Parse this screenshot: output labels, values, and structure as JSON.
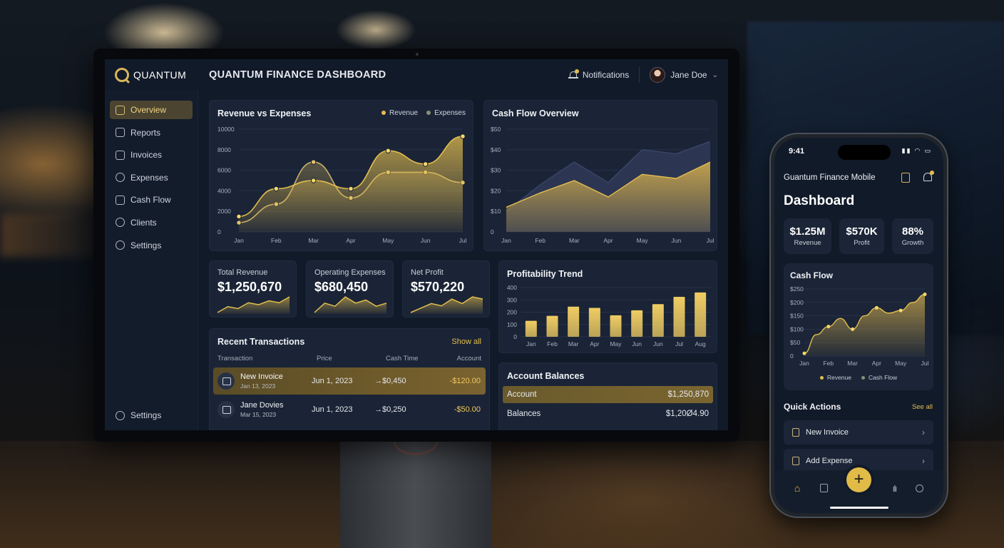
{
  "brand": {
    "name": "QUANTUM"
  },
  "header": {
    "title": "QUANTUM FINANCE DASHBOARD",
    "notifications_label": "Notifications",
    "user_name": "Jane Doe"
  },
  "sidebar": {
    "items": [
      {
        "label": "Overview",
        "icon": "home-icon",
        "active": true
      },
      {
        "label": "Reports",
        "icon": "bar-chart-icon"
      },
      {
        "label": "Invoices",
        "icon": "invoice-icon"
      },
      {
        "label": "Expenses",
        "icon": "dollar-circle-icon"
      },
      {
        "label": "Cash Flow",
        "icon": "trend-icon"
      },
      {
        "label": "Clients",
        "icon": "users-icon"
      },
      {
        "label": "Settings",
        "icon": "gear-icon"
      }
    ],
    "bottom_label": "Settings"
  },
  "revenue_chart": {
    "title": "Revenue vs Expenses",
    "legend": [
      "Revenue",
      "Expenses"
    ]
  },
  "cashflow_chart": {
    "title": "Cash Flow Overview"
  },
  "kpis": [
    {
      "label": "Total Revenue",
      "value": "$1,250,670"
    },
    {
      "label": "Operating Expenses",
      "value": "$680,450"
    },
    {
      "label": "Net Profit",
      "value": "$570,220"
    }
  ],
  "profit_chart": {
    "title": "Profitability Trend"
  },
  "transactions": {
    "title": "Recent Transactions",
    "show_all": "Show all",
    "columns": [
      "Transaction",
      "Price",
      "Cash Time",
      "Account"
    ],
    "rows": [
      {
        "name": "New Invoice",
        "sub": "Jan 13, 2023",
        "date": "Jun 1, 2023",
        "cash": "→$0,450",
        "amount": "-$120.00",
        "highlight": true
      },
      {
        "name": "Jane Dovies",
        "sub": "Mar 15, 2023",
        "date": "Jun 1, 2023",
        "cash": "→$0,250",
        "amount": "-$50.00",
        "highlight": false
      }
    ]
  },
  "balances": {
    "title": "Account Balances",
    "rows": [
      {
        "label": "Account",
        "value": "$1,250,870",
        "highlight": true
      },
      {
        "label": "Balances",
        "value": "$1,20Ø4.90",
        "highlight": false
      }
    ]
  },
  "phone": {
    "time": "9:41",
    "app_title": "Guantum Finance Mobile",
    "page_title": "Dashboard",
    "kpis": [
      {
        "value": "$1.25M",
        "label": "Revenue"
      },
      {
        "value": "$570K",
        "label": "Profit"
      },
      {
        "value": "88%",
        "label": "Growth"
      }
    ],
    "cash_flow_title": "Cash Flow",
    "legend": [
      "Revenue",
      "Cash Flow"
    ],
    "quick_actions_title": "Quick Actions",
    "see_all": "See all",
    "actions": [
      "New Invoice",
      "Add Expense"
    ],
    "fab": "+"
  },
  "colors": {
    "accent": "#e3bd4e",
    "background": "#111a29",
    "card": "#1a2436",
    "expense": "#8a8f73",
    "cashflow_dark": "#2c3652"
  },
  "chart_data": [
    {
      "id": "revenue-vs-expenses",
      "type": "area",
      "title": "Revenue vs Expenses",
      "categories": [
        "Jan",
        "Feb",
        "Mar",
        "Apr",
        "May",
        "Jun",
        "Jul"
      ],
      "ylim": [
        0,
        10000
      ],
      "yticks": [
        0,
        2000,
        4000,
        6000,
        8000,
        10000
      ],
      "series": [
        {
          "name": "Revenue",
          "values": [
            1500,
            4200,
            5000,
            4200,
            7900,
            6600,
            9300
          ]
        },
        {
          "name": "Expenses",
          "values": [
            900,
            2700,
            6800,
            3300,
            5800,
            5800,
            4800
          ]
        }
      ]
    },
    {
      "id": "cash-flow-overview",
      "type": "area",
      "title": "Cash Flow Overview",
      "categories": [
        "Jan",
        "Feb",
        "Mar",
        "Apr",
        "May",
        "Jun",
        "Jul"
      ],
      "ylim": [
        0,
        50
      ],
      "ytick_labels": [
        "0",
        "$10",
        "$20",
        "$30",
        "$40",
        "$50"
      ],
      "series": [
        {
          "name": "",
          "values": [
            10,
            23,
            34,
            24,
            40,
            38,
            44
          ]
        },
        {
          "name": "",
          "values": [
            12,
            19,
            25,
            17,
            28,
            26,
            34
          ]
        }
      ]
    },
    {
      "id": "kpi-sparklines",
      "type": "area",
      "series": [
        {
          "name": "Total Revenue",
          "values": [
            2,
            5,
            4,
            7,
            6,
            8,
            7,
            10
          ]
        },
        {
          "name": "Operating Expenses",
          "values": [
            3,
            6,
            5,
            8,
            6,
            7,
            5,
            6
          ]
        },
        {
          "name": "Net Profit",
          "values": [
            2,
            4,
            6,
            5,
            8,
            6,
            9,
            8
          ]
        }
      ]
    },
    {
      "id": "profitability-trend",
      "type": "bar",
      "title": "Profitability Trend",
      "categories": [
        "Jan",
        "Feb",
        "Mar",
        "Apr",
        "May",
        "Jun",
        "Jun",
        "Jul",
        "Aug"
      ],
      "values": [
        130,
        170,
        245,
        235,
        175,
        215,
        265,
        325,
        360
      ],
      "ylim": [
        0,
        400
      ],
      "yticks": [
        0,
        100,
        200,
        300,
        400
      ]
    },
    {
      "id": "mobile-cash-flow",
      "type": "area",
      "title": "Cash Flow",
      "categories": [
        "Jan",
        "Feb",
        "Mar",
        "Apr",
        "May",
        "Jul"
      ],
      "ylim": [
        0,
        250
      ],
      "ytick_labels": [
        "0",
        "$50",
        "$100",
        "$150",
        "$200",
        "$250"
      ],
      "x": [
        0,
        0.5,
        1,
        1.5,
        2,
        2.5,
        3,
        3.5,
        4,
        4.5,
        5
      ],
      "series": [
        {
          "name": "Revenue",
          "values": [
            10,
            80,
            110,
            140,
            100,
            150,
            180,
            160,
            170,
            200,
            230
          ]
        }
      ]
    }
  ]
}
